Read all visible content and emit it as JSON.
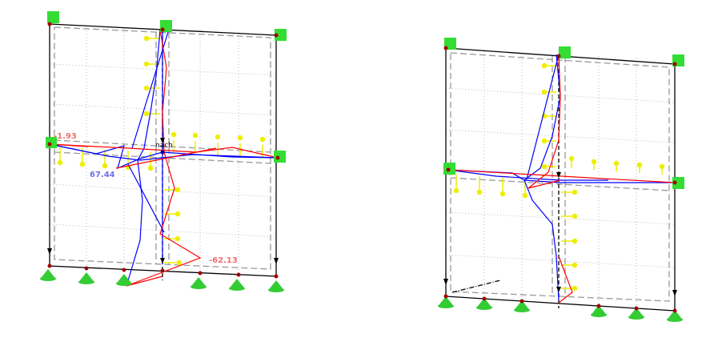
{
  "left_frame": {
    "labels": {
      "top_left_value": "-1.93",
      "left_value": "67.44",
      "bottom_value": "-62.13",
      "node_label": "nach"
    }
  },
  "right_frame": {},
  "colors": {
    "positive_diagram": "#0000ff",
    "negative_diagram": "#ff0000",
    "support": "#33dd33",
    "load": "#ffee00",
    "structure": "#000000",
    "label_red": "#f07070",
    "label_blue": "#7070f0"
  }
}
